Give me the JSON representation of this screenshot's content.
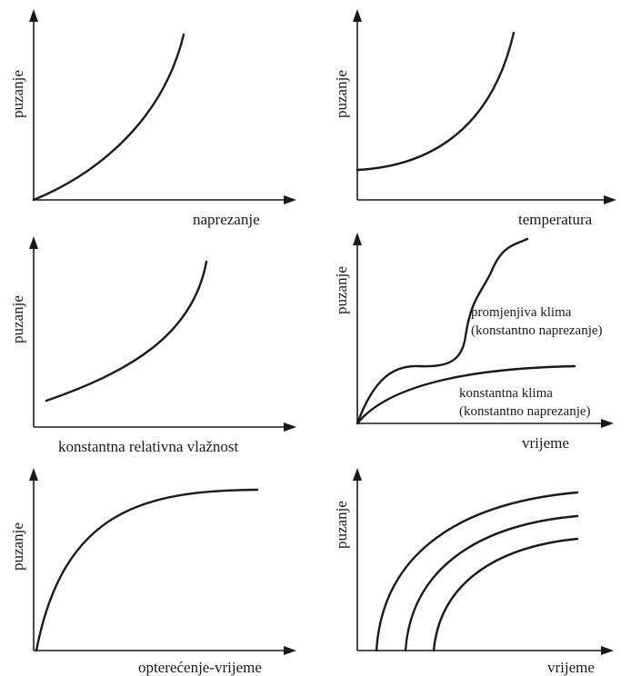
{
  "panels": [
    {
      "id": "p1",
      "ylabel": "puzanje",
      "xlabel": "naprezanje"
    },
    {
      "id": "p2",
      "ylabel": "puzanje",
      "xlabel": "temperatura"
    },
    {
      "id": "p3",
      "ylabel": "puzanje",
      "xlabel": "konstantna relativna vlažnost"
    },
    {
      "id": "p4",
      "ylabel": "puzanje",
      "xlabel": "vrijeme",
      "annotations": {
        "variable_line1": "promjenjiva klima",
        "variable_line2": "(konstantno naprezanje)",
        "constant_line1": "konstantna klima",
        "constant_line2": "(konstantno naprezanje)"
      }
    },
    {
      "id": "p5",
      "ylabel": "puzanje",
      "xlabel": "opterećenje-vrijeme"
    },
    {
      "id": "p6",
      "ylabel": "puzanje",
      "xlabel": "vrijeme"
    }
  ]
}
